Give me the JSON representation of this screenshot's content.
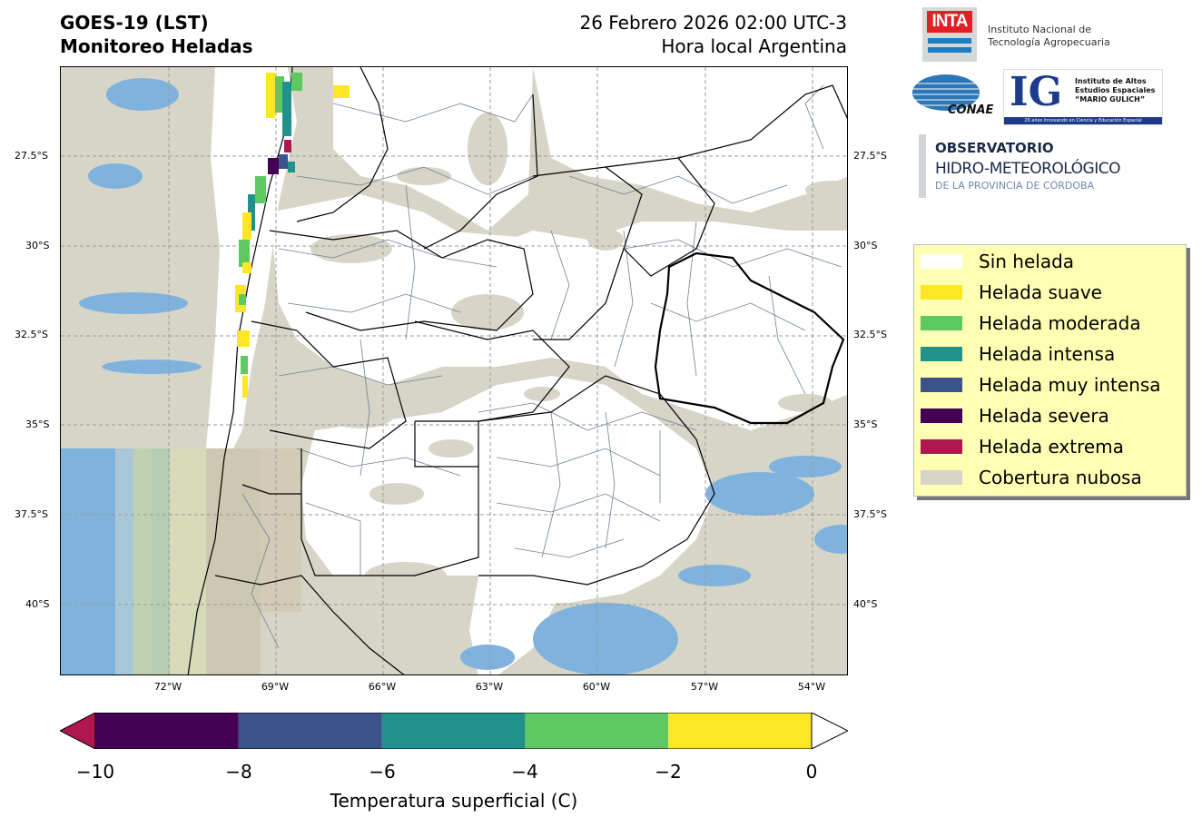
{
  "header": {
    "title_line1": "GOES-19 (LST)",
    "title_line2": "Monitoreo Heladas",
    "date_line1": "26 Febrero 2026 02:00 UTC-3",
    "date_line2": "Hora local Argentina"
  },
  "map": {
    "lat_labels": [
      "27.5°S",
      "30°S",
      "32.5°S",
      "35°S",
      "37.5°S",
      "40°S"
    ],
    "lon_labels": [
      "72°W",
      "69°W",
      "66°W",
      "63°W",
      "60°W",
      "57°W",
      "54°W"
    ],
    "colors": {
      "cloud": "#d6d5c7",
      "land_clear": "#ffffff",
      "water": "#7fb3dd",
      "province_border": "#000000",
      "department_border": "#6e7f93",
      "grid": "#9a9a9a"
    }
  },
  "logos": {
    "inta_word": "INTA",
    "inta_line1": "Instituto Nacional de",
    "inta_line2": "Tecnología Agropecuaria",
    "conae_word": "CONAE",
    "ig_word": "IG",
    "ig_line1": "Instituto de Altos",
    "ig_line2": "Estudios Espaciales",
    "ig_line3": "“MARIO GULICH”",
    "ig_strip": "20 años innovando en Ciencia y Educación Espacial",
    "obs_line1": "OBSERVATORIO",
    "obs_line2": "HIDRO-METEOROLÓGICO",
    "obs_line3": "DE LA PROVINCIA DE CÓRDOBA"
  },
  "legend": {
    "items": [
      {
        "label": "Sin helada",
        "color": "#ffffff"
      },
      {
        "label": "Helada suave",
        "color": "#fde725"
      },
      {
        "label": "Helada moderada",
        "color": "#5ec962"
      },
      {
        "label": "Helada intensa",
        "color": "#21918c"
      },
      {
        "label": "Helada muy intensa",
        "color": "#3b528b"
      },
      {
        "label": "Helada severa",
        "color": "#440154"
      },
      {
        "label": "Helada extrema",
        "color": "#b0174f"
      },
      {
        "label": "Cobertura nubosa",
        "color": "#d6d5c7"
      }
    ]
  },
  "colorbar": {
    "ticks": [
      "−10",
      "−8",
      "−6",
      "−4",
      "−2",
      "0"
    ],
    "label": "Temperatura superficial (C)",
    "bins": [
      {
        "from": -10,
        "to": -8,
        "color": "#440154"
      },
      {
        "from": -8,
        "to": -6,
        "color": "#3b528b"
      },
      {
        "from": -6,
        "to": -4,
        "color": "#21918c"
      },
      {
        "from": -4,
        "to": -2,
        "color": "#5ec962"
      },
      {
        "from": -2,
        "to": 0,
        "color": "#fde725"
      }
    ],
    "under_color": "#b0174f",
    "over_color": "#ffffff"
  }
}
